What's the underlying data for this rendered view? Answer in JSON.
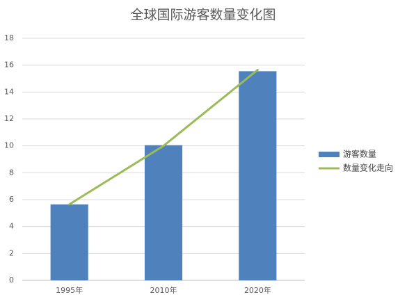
{
  "chart_data": {
    "type": "bar",
    "title": "全球国际游客数量变化图",
    "categories": [
      "1995年",
      "2010年",
      "2020年"
    ],
    "series": [
      {
        "name": "游客数量",
        "type": "bar",
        "color": "#4f81bd",
        "values": [
          5.65,
          10.05,
          15.55
        ]
      },
      {
        "name": "数量变化走向",
        "type": "line",
        "color": "#9bbb59",
        "values": [
          5.65,
          10.0,
          15.65
        ]
      }
    ],
    "ylim": [
      0,
      18
    ],
    "yticks": [
      0,
      2,
      4,
      6,
      8,
      10,
      12,
      14,
      16,
      18
    ],
    "grid": true,
    "legend": "right"
  }
}
